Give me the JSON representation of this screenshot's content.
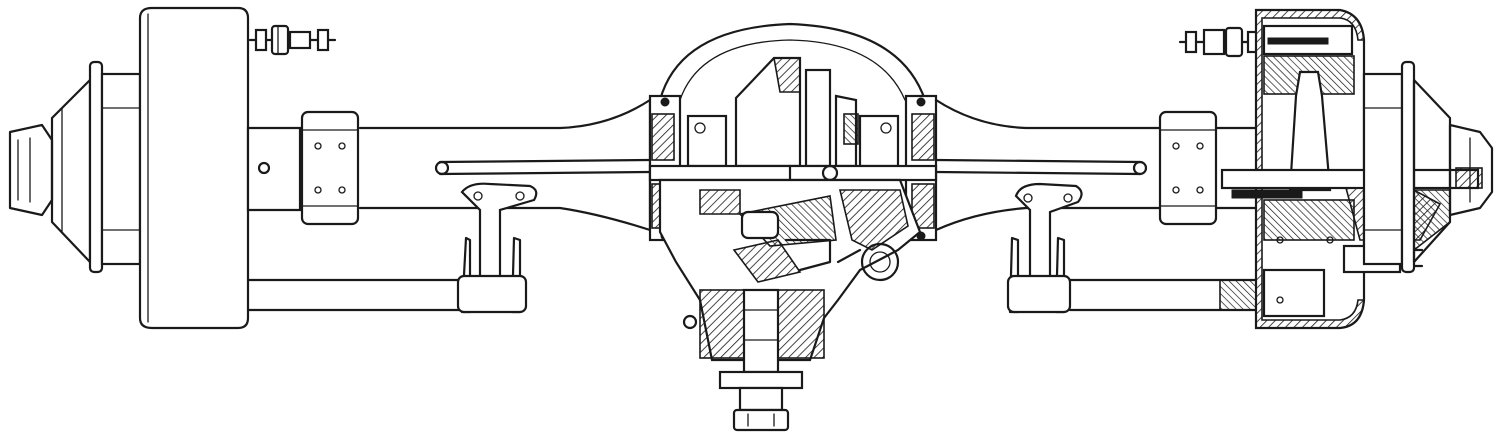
{
  "figure": {
    "subject": "",
    "colors": {
      "ink": "#1a1a1a",
      "paper": "#ffffff"
    }
  }
}
